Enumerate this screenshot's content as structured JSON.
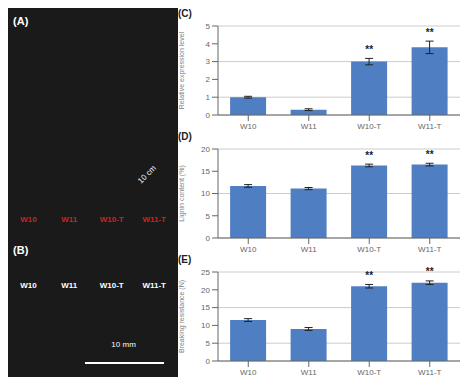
{
  "annotations": [
    {
      "text": "(A)",
      "color": "#ffffff"
    },
    {
      "text": "(B)",
      "color": "#ffffff"
    },
    {
      "text": "W10",
      "color": "#cc2222"
    },
    {
      "text": "W11",
      "color": "#cc2222"
    },
    {
      "text": "W10-T",
      "color": "#cc2222"
    },
    {
      "text": "W11-T",
      "color": "#cc2222"
    },
    {
      "text": "10 cm",
      "color": "#ffffff"
    },
    {
      "text": "W10",
      "color": "#ffffff"
    },
    {
      "text": "W11",
      "color": "#ffffff"
    },
    {
      "text": "W10-T",
      "color": "#ffffff"
    },
    {
      "text": "W11-T",
      "color": "#ffffff"
    },
    {
      "text": "10 mm",
      "color": "#ffffff"
    }
  ],
  "chart_data": [
    {
      "type": "bar",
      "title": "(C)",
      "ylabel": "Relative expression level",
      "categories": [
        "W10",
        "W11",
        "W10-T",
        "W11-T"
      ],
      "values": [
        1.0,
        0.3,
        3.0,
        3.8
      ],
      "errors": [
        0.05,
        0.05,
        0.18,
        0.35
      ],
      "color": "#4f7fc2",
      "ylim": [
        0,
        5
      ],
      "yticks": [
        0,
        1,
        2,
        3,
        4,
        5
      ],
      "grid": true,
      "annotations": [
        {
          "category": "W10-T",
          "text": "**"
        },
        {
          "category": "W11-T",
          "text": "**"
        }
      ]
    },
    {
      "type": "bar",
      "title": "(D)",
      "ylabel": "Lignin content (%)",
      "categories": [
        "W10",
        "W11",
        "W10-T",
        "W11-T"
      ],
      "values": [
        11.7,
        11.1,
        16.3,
        16.5
      ],
      "errors": [
        0.3,
        0.25,
        0.3,
        0.3
      ],
      "color": "#4f7fc2",
      "ylim": [
        0,
        20
      ],
      "yticks": [
        0,
        5,
        10,
        15,
        20
      ],
      "grid": true,
      "annotations": [
        {
          "category": "W10-T",
          "text": "**"
        },
        {
          "category": "W11-T",
          "text": "**"
        }
      ]
    },
    {
      "type": "bar",
      "title": "(E)",
      "ylabel": "Breaking resistance (N)",
      "categories": [
        "W10",
        "W11",
        "W10-T",
        "W11-T"
      ],
      "values": [
        11.5,
        9.0,
        21.0,
        22.0
      ],
      "errors": [
        0.4,
        0.4,
        0.5,
        0.5
      ],
      "color": "#4f7fc2",
      "ylim": [
        0,
        25
      ],
      "yticks": [
        0,
        5,
        10,
        15,
        20,
        25
      ],
      "grid": true,
      "annotations": [
        {
          "category": "W10-T",
          "text": "**"
        },
        {
          "category": "W11-T",
          "text": "**"
        }
      ]
    }
  ]
}
